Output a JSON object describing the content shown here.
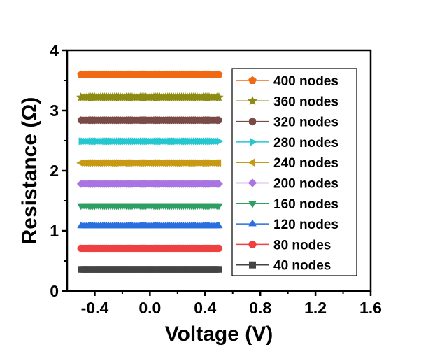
{
  "chart_data": {
    "type": "line",
    "xlabel": "Voltage (V)",
    "ylabel": "Resistance (Ω)",
    "xlim": [
      -0.6,
      1.6
    ],
    "ylim": [
      0,
      4
    ],
    "xticks": [
      -0.4,
      0.0,
      0.4,
      0.8,
      1.2,
      1.6
    ],
    "xtick_labels": [
      "-0.4",
      "0.0",
      "0.4",
      "0.8",
      "1.2",
      "1.6"
    ],
    "yticks": [
      0,
      1,
      2,
      3,
      4
    ],
    "ytick_labels": [
      "0",
      "1",
      "2",
      "3",
      "4"
    ],
    "grid": false,
    "legend_position": "right",
    "x_range": [
      -0.5,
      0.5
    ],
    "series": [
      {
        "name": "400 nodes",
        "value": 3.6,
        "color": "#f06a14",
        "marker": "pentagon"
      },
      {
        "name": "360 nodes",
        "value": 3.22,
        "color": "#8c8c14",
        "marker": "star"
      },
      {
        "name": "320 nodes",
        "value": 2.84,
        "color": "#7a4a46",
        "marker": "hexagon"
      },
      {
        "name": "280 nodes",
        "value": 2.49,
        "color": "#26c6cf",
        "marker": "triangle-right"
      },
      {
        "name": "240 nodes",
        "value": 2.13,
        "color": "#c79a14",
        "marker": "triangle-left"
      },
      {
        "name": "200 nodes",
        "value": 1.78,
        "color": "#a975e2",
        "marker": "diamond"
      },
      {
        "name": "160 nodes",
        "value": 1.42,
        "color": "#2f9e64",
        "marker": "triangle-down"
      },
      {
        "name": "120 nodes",
        "value": 1.08,
        "color": "#2a6ee0",
        "marker": "triangle-up"
      },
      {
        "name": "80 nodes",
        "value": 0.71,
        "color": "#ee4141",
        "marker": "circle"
      },
      {
        "name": "40 nodes",
        "value": 0.36,
        "color": "#444444",
        "marker": "square"
      }
    ]
  }
}
